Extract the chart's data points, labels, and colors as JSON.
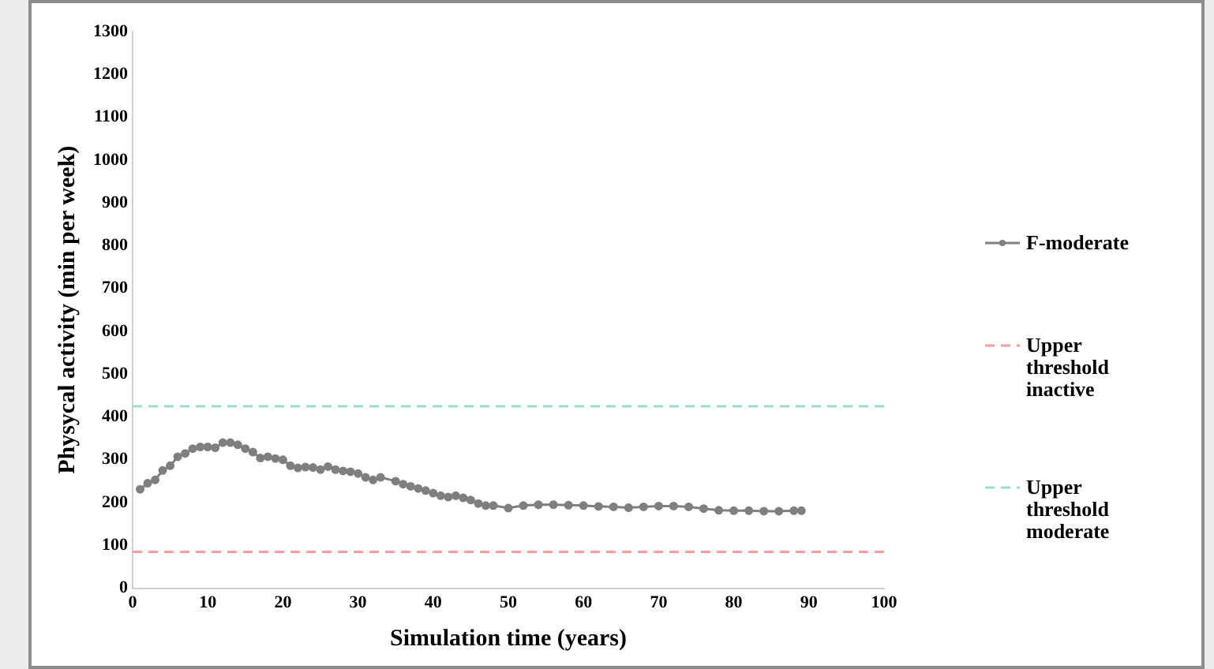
{
  "chart_data": {
    "type": "line",
    "xlabel": "Simulation time (years)",
    "ylabel": "Physycal activity (min per week)",
    "xlim": [
      0,
      100
    ],
    "xticks": [
      0,
      10,
      20,
      30,
      40,
      50,
      60,
      70,
      80,
      90,
      100
    ],
    "ylim": [
      0,
      1300
    ],
    "yticks": [
      0,
      100,
      200,
      300,
      400,
      500,
      600,
      700,
      800,
      900,
      1000,
      1100,
      1200,
      1300
    ],
    "grid": false,
    "legend": "right",
    "marker": "circle",
    "line_style": "solid",
    "series": [
      {
        "name": "F-moderate",
        "color": "#7f7f7f",
        "x": [
          1,
          2,
          3,
          4,
          5,
          6,
          7,
          8,
          9,
          10,
          11,
          12,
          13,
          14,
          15,
          16,
          17,
          18,
          19,
          20,
          21,
          22,
          23,
          24,
          25,
          26,
          27,
          28,
          29,
          30,
          31,
          32,
          33,
          35,
          36,
          37,
          38,
          39,
          40,
          41,
          42,
          43,
          44,
          45,
          46,
          47,
          48,
          50,
          52,
          54,
          56,
          58,
          60,
          62,
          64,
          66,
          68,
          70,
          72,
          74,
          76,
          78,
          80,
          82,
          84,
          86,
          88,
          89
        ],
        "values": [
          231,
          245,
          253,
          275,
          286,
          307,
          315,
          326,
          330,
          330,
          328,
          340,
          340,
          335,
          326,
          318,
          304,
          307,
          303,
          300,
          286,
          281,
          283,
          282,
          277,
          284,
          277,
          274,
          272,
          268,
          259,
          253,
          259,
          250,
          243,
          238,
          233,
          228,
          222,
          216,
          213,
          216,
          211,
          206,
          198,
          193,
          193,
          187,
          193,
          195,
          195,
          194,
          193,
          191,
          190,
          188,
          190,
          192,
          192,
          190,
          186,
          182,
          181,
          181,
          180,
          180,
          181,
          181
        ]
      }
    ],
    "ref_lines": [
      {
        "axis": "y",
        "value": 85,
        "label": "Upper threshold inactive",
        "color": "#ff9999",
        "line_style": "dashed"
      },
      {
        "axis": "y",
        "value": 425,
        "label": "Upper threshold moderate",
        "color": "#99ddcc",
        "line_style": "dashed"
      }
    ]
  }
}
